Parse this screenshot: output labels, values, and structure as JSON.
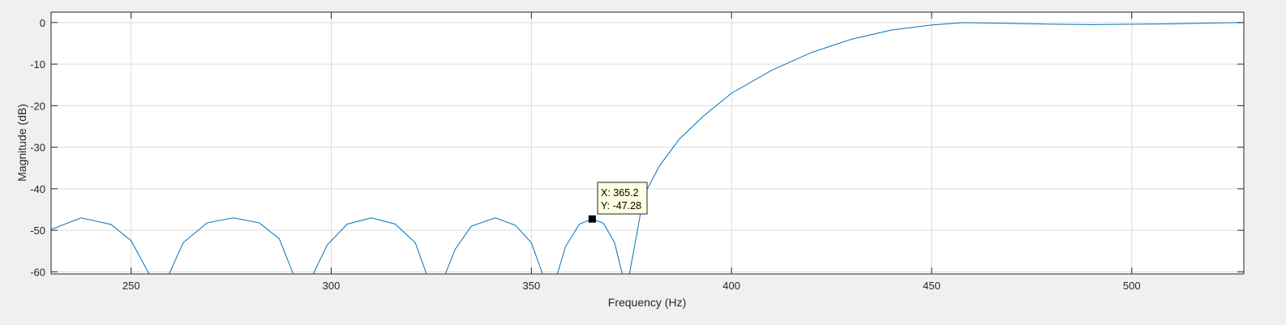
{
  "chart_data": {
    "type": "line",
    "title": "",
    "xlabel": "Frequency (Hz)",
    "ylabel": "Magnitude (dB)",
    "xlim": [
      230,
      528
    ],
    "ylim": [
      -60.5,
      2.5
    ],
    "xticks": [
      250,
      300,
      350,
      400,
      450,
      500
    ],
    "yticks": [
      0,
      -10,
      -20,
      -30,
      -40,
      -50,
      -60
    ],
    "grid": true,
    "line_color": "#0072bd",
    "series": [
      {
        "points": [
          [
            230,
            -49.8
          ],
          [
            237.5,
            -47.0
          ],
          [
            245,
            -48.6
          ],
          [
            250,
            -52.5
          ],
          [
            254.5,
            -60.5
          ],
          [
            259.5,
            -60.5
          ],
          [
            263,
            -53.0
          ],
          [
            269,
            -48.2
          ],
          [
            275.5,
            -47.0
          ],
          [
            282,
            -48.2
          ],
          [
            287,
            -52.0
          ],
          [
            290.5,
            -60.5
          ],
          [
            295.5,
            -60.5
          ],
          [
            299,
            -53.5
          ],
          [
            304,
            -48.5
          ],
          [
            310,
            -47.0
          ],
          [
            316,
            -48.5
          ],
          [
            321,
            -53.0
          ],
          [
            323.8,
            -60.5
          ],
          [
            328.5,
            -60.5
          ],
          [
            331,
            -54.5
          ],
          [
            335,
            -49.0
          ],
          [
            341,
            -47.0
          ],
          [
            346,
            -48.8
          ],
          [
            350,
            -53.0
          ],
          [
            352.8,
            -60.5
          ],
          [
            356.5,
            -60.5
          ],
          [
            358.5,
            -54.0
          ],
          [
            362,
            -48.5
          ],
          [
            365.2,
            -47.28
          ],
          [
            368,
            -48.3
          ],
          [
            370.8,
            -53.0
          ],
          [
            372.7,
            -60.5
          ],
          [
            374.5,
            -60.5
          ],
          [
            376.5,
            -50.0
          ],
          [
            378,
            -41.8
          ],
          [
            382,
            -34.5
          ],
          [
            387,
            -28.0
          ],
          [
            393,
            -22.5
          ],
          [
            400,
            -17.0
          ],
          [
            410,
            -11.5
          ],
          [
            420,
            -7.2
          ],
          [
            430,
            -4.0
          ],
          [
            440,
            -1.8
          ],
          [
            450,
            -0.6
          ],
          [
            458,
            0.0
          ],
          [
            470,
            -0.2
          ],
          [
            480,
            -0.4
          ],
          [
            490,
            -0.5
          ],
          [
            500,
            -0.4
          ],
          [
            510,
            -0.3
          ],
          [
            520,
            -0.1
          ],
          [
            528,
            0.0
          ]
        ]
      }
    ],
    "datatip": {
      "x": 365.2,
      "y": -47.28,
      "x_label": "X: 365.2",
      "y_label": "Y: -47.28"
    }
  }
}
